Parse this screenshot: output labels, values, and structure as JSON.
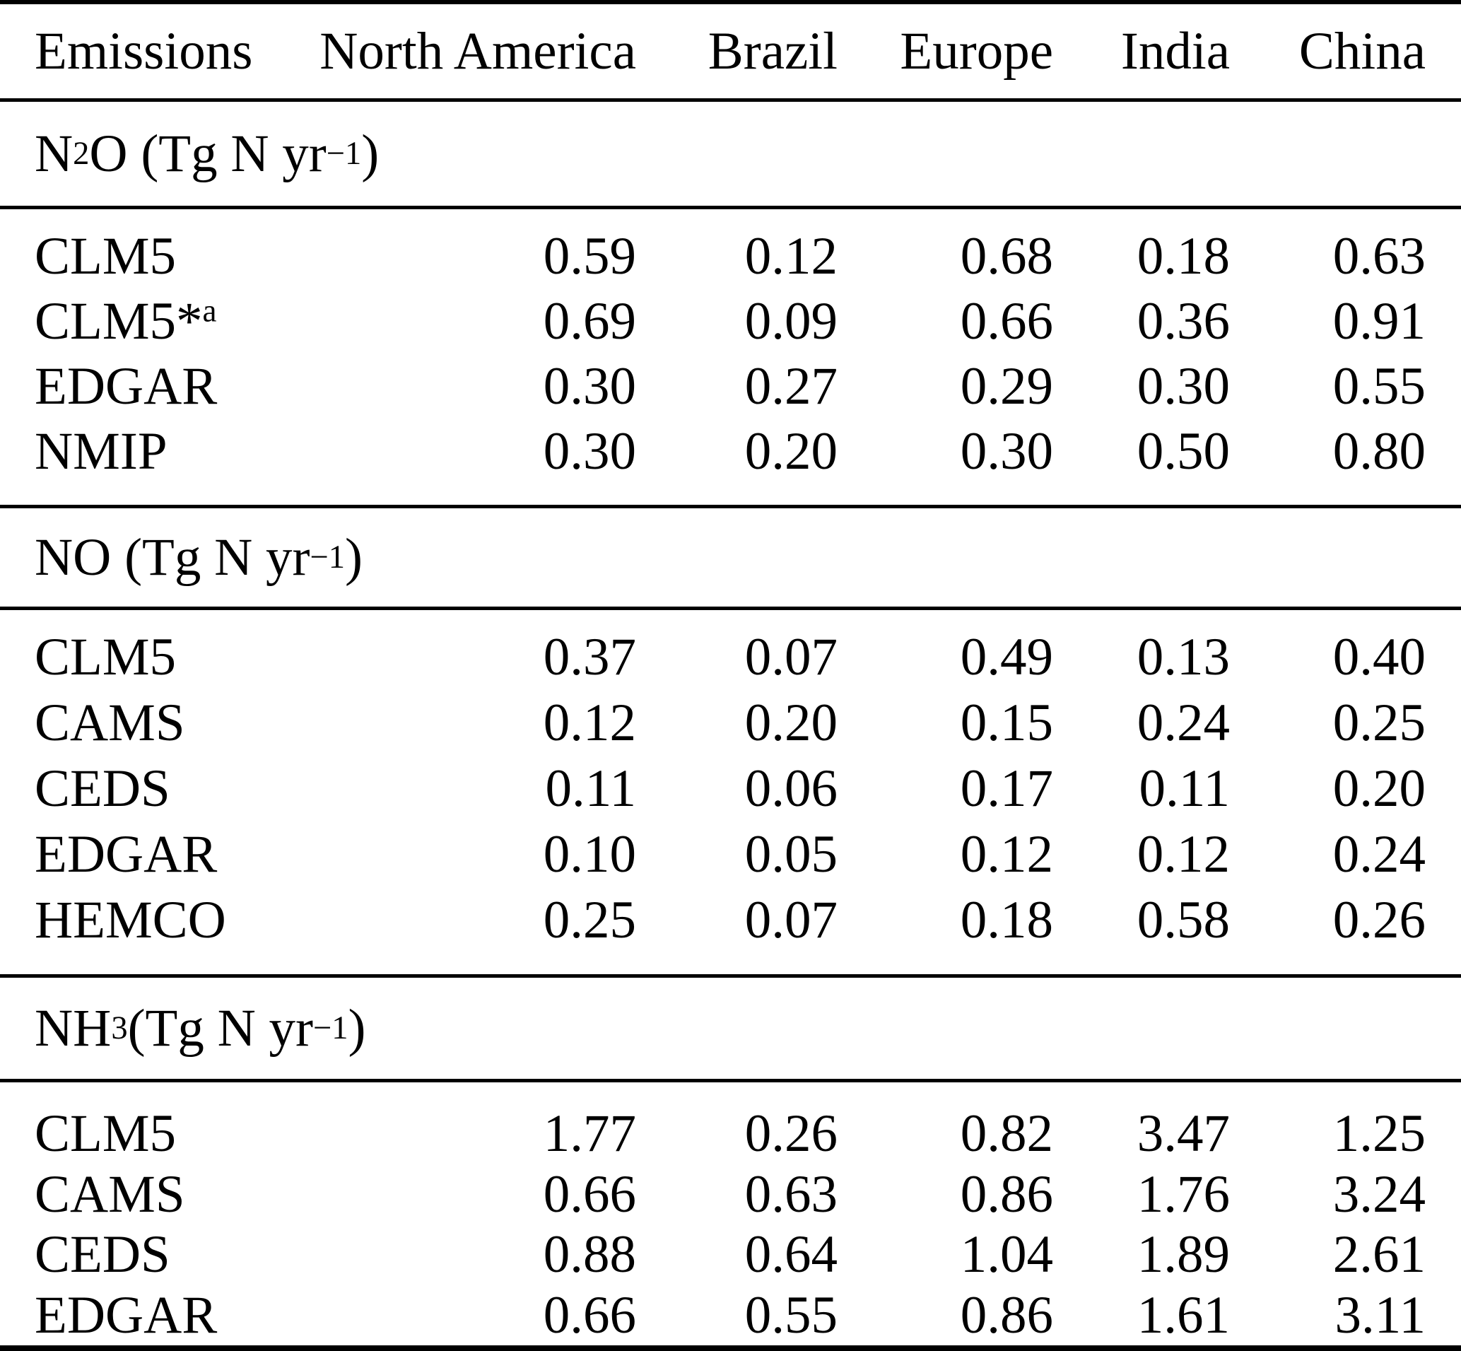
{
  "table": {
    "columns": [
      "Emissions",
      "North America",
      "Brazil",
      "Europe",
      "India",
      "China"
    ],
    "sections": [
      {
        "id": "n2o",
        "title": {
          "pre": "N",
          "sub": "2",
          "mid": "O (Tg N yr",
          "sup": "−1",
          "post": ")"
        },
        "rows": [
          {
            "label": "CLM5",
            "label_sup": "",
            "values": [
              "0.59",
              "0.12",
              "0.68",
              "0.18",
              "0.63"
            ]
          },
          {
            "label": "CLM5*",
            "label_sup": "a",
            "values": [
              "0.69",
              "0.09",
              "0.66",
              "0.36",
              "0.91"
            ]
          },
          {
            "label": "EDGAR",
            "label_sup": "",
            "values": [
              "0.30",
              "0.27",
              "0.29",
              "0.30",
              "0.55"
            ]
          },
          {
            "label": "NMIP",
            "label_sup": "",
            "values": [
              "0.30",
              "0.20",
              "0.30",
              "0.50",
              "0.80"
            ]
          }
        ]
      },
      {
        "id": "no",
        "title": {
          "pre": "NO (Tg N yr",
          "sub": "",
          "mid": "",
          "sup": "−1",
          "post": ")"
        },
        "rows": [
          {
            "label": "CLM5",
            "label_sup": "",
            "values": [
              "0.37",
              "0.07",
              "0.49",
              "0.13",
              "0.40"
            ]
          },
          {
            "label": "CAMS",
            "label_sup": "",
            "values": [
              "0.12",
              "0.20",
              "0.15",
              "0.24",
              "0.25"
            ]
          },
          {
            "label": "CEDS",
            "label_sup": "",
            "values": [
              "0.11",
              "0.06",
              "0.17",
              "0.11",
              "0.20"
            ]
          },
          {
            "label": "EDGAR",
            "label_sup": "",
            "values": [
              "0.10",
              "0.05",
              "0.12",
              "0.12",
              "0.24"
            ]
          },
          {
            "label": "HEMCO",
            "label_sup": "",
            "values": [
              "0.25",
              "0.07",
              "0.18",
              "0.58",
              "0.26"
            ]
          }
        ]
      },
      {
        "id": "nh3",
        "title": {
          "pre": "NH",
          "sub": "3",
          "mid": " (Tg N yr",
          "sup": "−1",
          "post": ")"
        },
        "rows": [
          {
            "label": "CLM5",
            "label_sup": "",
            "values": [
              "1.77",
              "0.26",
              "0.82",
              "3.47",
              "1.25"
            ]
          },
          {
            "label": "CAMS",
            "label_sup": "",
            "values": [
              "0.66",
              "0.63",
              "0.86",
              "1.76",
              "3.24"
            ]
          },
          {
            "label": "CEDS",
            "label_sup": "",
            "values": [
              "0.88",
              "0.64",
              "1.04",
              "1.89",
              "2.61"
            ]
          },
          {
            "label": "EDGAR",
            "label_sup": "",
            "values": [
              "0.66",
              "0.55",
              "0.86",
              "1.61",
              "3.11"
            ]
          }
        ]
      }
    ]
  }
}
